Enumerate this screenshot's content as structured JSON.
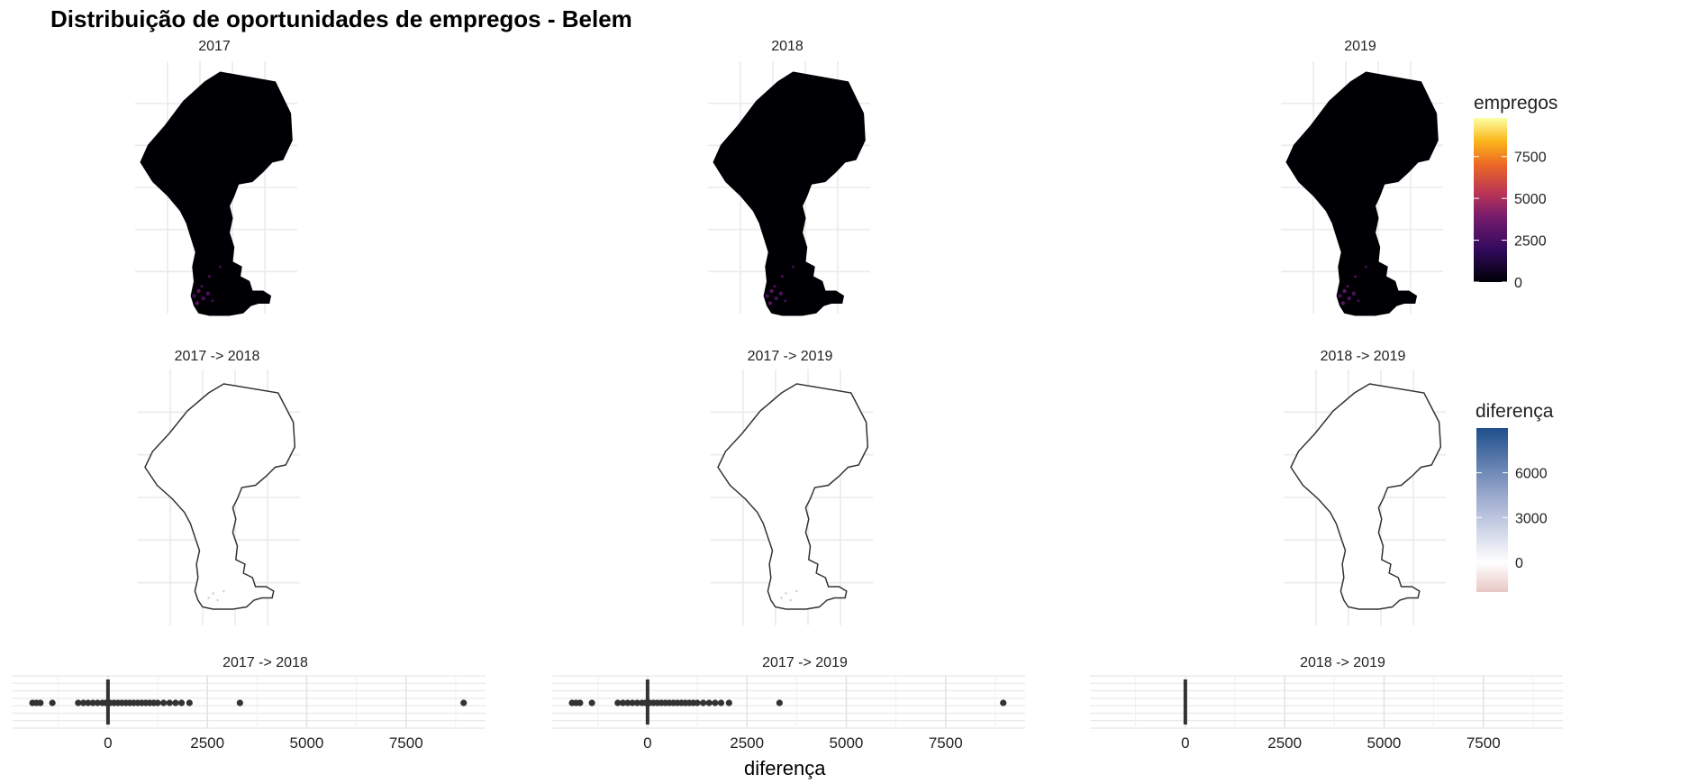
{
  "chart_data": {
    "type": "faceted-map-and-strip",
    "title": "Distribuição de oportunidades de empregos - Belem",
    "xlabel": "diferença",
    "maps_row1": {
      "panels": [
        "2017",
        "2018",
        "2019"
      ],
      "legend": {
        "title": "empregos",
        "scale": "inferno",
        "range": [
          0,
          9800
        ],
        "ticks": [
          0,
          2500,
          5000,
          7500
        ],
        "tick_labels": [
          "0",
          "2500",
          "5000",
          "7500"
        ]
      }
    },
    "maps_row2": {
      "panels": [
        "2017 -> 2018",
        "2017 -> 2019",
        "2018 -> 2019"
      ],
      "legend": {
        "title": "diferença",
        "scale": "red-white-blue",
        "range": [
          -2000,
          9000
        ],
        "ticks": [
          0,
          3000,
          6000
        ],
        "tick_labels": [
          "0",
          "3000",
          "6000"
        ]
      }
    },
    "strips": {
      "type": "scatter",
      "x_range": [
        -2400,
        9500
      ],
      "ticks": [
        0,
        2500,
        5000,
        7500
      ],
      "tick_labels": [
        "0",
        "2500",
        "5000",
        "7500"
      ],
      "panels": [
        {
          "label": "2017 -> 2018",
          "points": [
            -1900,
            -1800,
            -1700,
            -1400,
            -750,
            -620,
            -500,
            -380,
            -260,
            -140,
            -50,
            50,
            150,
            250,
            350,
            450,
            550,
            650,
            750,
            850,
            950,
            1050,
            1150,
            1250,
            1400,
            1550,
            1700,
            1850,
            2050,
            3320,
            8950
          ]
        },
        {
          "label": "2017 -> 2019",
          "points": [
            -1900,
            -1800,
            -1700,
            -1400,
            -750,
            -620,
            -500,
            -380,
            -260,
            -140,
            -50,
            50,
            150,
            250,
            350,
            450,
            550,
            650,
            750,
            850,
            950,
            1050,
            1150,
            1250,
            1400,
            1550,
            1700,
            1850,
            2050,
            3320,
            8950
          ]
        },
        {
          "label": "2018 -> 2019",
          "points": []
        }
      ]
    }
  }
}
